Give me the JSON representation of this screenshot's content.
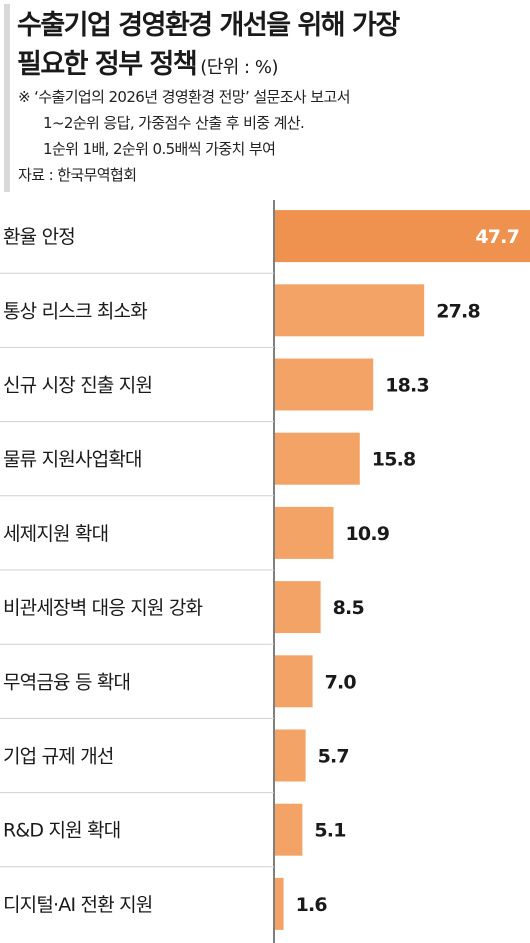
{
  "header": {
    "title_line1": "수출기업 경영환경 개선을 위해 가장",
    "title_line2": "필요한 정부 정책",
    "unit": "(단위 : %)",
    "note_line1": "※ ‘수출기업의 2026년 경영환경 전망’ 설문조사 보고서",
    "note_line2": "1~2순위 응답, 가중점수 산출 후 비중 계산.",
    "note_line3": "1순위 1배, 2순위 0.5배씩 가중치 부여",
    "source": "자료 : 한국무역협회"
  },
  "colors": {
    "bar": "#f4a366",
    "bar_top": "#ef9250",
    "axis": "#555555",
    "divider": "#d0d0d0",
    "accent_bar": "#d9d9d9"
  },
  "chart_data": {
    "type": "bar",
    "orientation": "horizontal",
    "categories": [
      "환율 안정",
      "통상 리스크 최소화",
      "신규 시장 진출 지원",
      "물류 지원사업확대",
      "세제지원 확대",
      "비관세장벽 대응 지원 강화",
      "무역금융 등 확대",
      "기업 규제 개선",
      "R&D 지원 확대",
      "디지털·AI 전환 지원"
    ],
    "values": [
      47.7,
      27.8,
      18.3,
      15.8,
      10.9,
      8.5,
      7.0,
      5.7,
      5.1,
      1.6
    ],
    "value_labels": [
      "47.7",
      "27.8",
      "18.3",
      "15.8",
      "10.9",
      "8.5",
      "7.0",
      "5.7",
      "5.1",
      "1.6"
    ],
    "xlim": [
      0,
      47.7
    ],
    "grid": false,
    "legend": "none"
  }
}
